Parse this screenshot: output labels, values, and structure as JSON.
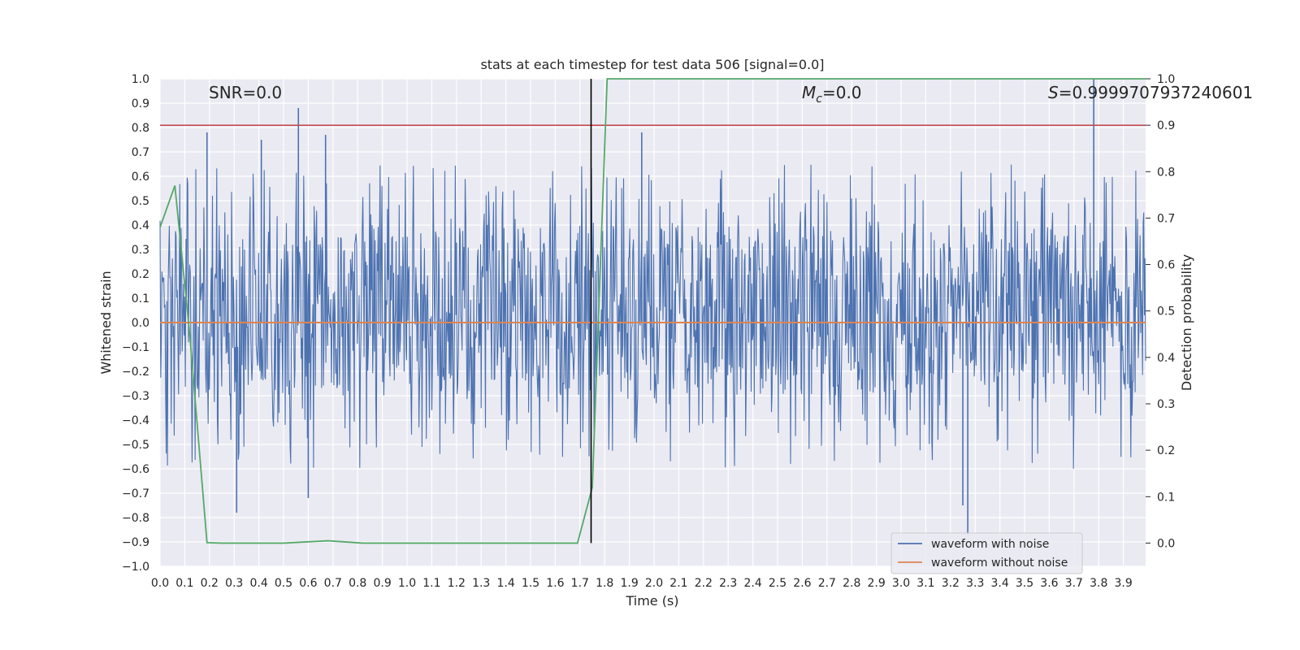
{
  "chart_data": {
    "type": "line",
    "title": "stats at each timestep for test data 506 [signal=0.0]",
    "xlabel": "Time (s)",
    "ylabel": "Whitened strain",
    "y2label": "Detection probability",
    "xlim": [
      0.0,
      3.99
    ],
    "ylim": [
      -1.0,
      1.0
    ],
    "y2lim": [
      -0.05,
      1.0
    ],
    "x_ticks": [
      0.0,
      0.1,
      0.2,
      0.3,
      0.4,
      0.5,
      0.6,
      0.7,
      0.8,
      0.9,
      1.0,
      1.1,
      1.2,
      1.3,
      1.4,
      1.5,
      1.6,
      1.7,
      1.8,
      1.9,
      2.0,
      2.1,
      2.2,
      2.3,
      2.4,
      2.5,
      2.6,
      2.7,
      2.8,
      2.9,
      3.0,
      3.1,
      3.2,
      3.3,
      3.4,
      3.5,
      3.6,
      3.7,
      3.8,
      3.9
    ],
    "x_tick_labels": [
      "0.0",
      "0.1",
      "0.2",
      "0.3",
      "0.4",
      "0.5",
      "0.6",
      "0.7",
      "0.8",
      "0.9",
      "1.0",
      "1.1",
      "1.2",
      "1.3",
      "1.4",
      "1.5",
      "1.6",
      "1.7",
      "1.8",
      "1.9",
      "2.0",
      "2.1",
      "2.2",
      "2.3",
      "2.4",
      "2.5",
      "2.6",
      "2.7",
      "2.8",
      "2.9",
      "3.0",
      "3.1",
      "3.2",
      "3.3",
      "3.4",
      "3.5",
      "3.6",
      "3.7",
      "3.8",
      "3.9"
    ],
    "y_ticks": [
      -1.0,
      -0.9,
      -0.8,
      -0.7,
      -0.6,
      -0.5,
      -0.4,
      -0.3,
      -0.2,
      -0.1,
      0.0,
      0.1,
      0.2,
      0.3,
      0.4,
      0.5,
      0.6,
      0.7,
      0.8,
      0.9,
      1.0
    ],
    "y_tick_labels": [
      "−1.0",
      "−0.9",
      "−0.8",
      "−0.7",
      "−0.6",
      "−0.5",
      "−0.4",
      "−0.3",
      "−0.2",
      "−0.1",
      "0.0",
      "0.1",
      "0.2",
      "0.3",
      "0.4",
      "0.5",
      "0.6",
      "0.7",
      "0.8",
      "0.9",
      "1.0"
    ],
    "y2_ticks": [
      0.0,
      0.1,
      0.2,
      0.3,
      0.4,
      0.5,
      0.6,
      0.7,
      0.8,
      0.9,
      1.0
    ],
    "y2_tick_labels": [
      "0.0",
      "0.1",
      "0.2",
      "0.3",
      "0.4",
      "0.5",
      "0.6",
      "0.7",
      "0.8",
      "0.9",
      "1.0"
    ],
    "grid": true,
    "legend_position": "bottom-right",
    "annotations": {
      "snr": "SNR=0.0",
      "mc_symbol": "M",
      "mc_subscript": "c",
      "mc_value": "=0.0",
      "s_symbol": "S",
      "s_value": "=0.9999707937240601"
    },
    "series": [
      {
        "name": "waveform with noise",
        "color": "#4c72b0",
        "axis": "left",
        "noise_band": [
          -0.3,
          0.4
        ],
        "spikes": [
          {
            "x": 0.19,
            "y": 0.78
          },
          {
            "x": 0.31,
            "y": -0.78
          },
          {
            "x": 0.41,
            "y": 0.75
          },
          {
            "x": 0.56,
            "y": 0.88
          },
          {
            "x": 0.6,
            "y": -0.72
          },
          {
            "x": 0.67,
            "y": 0.77
          },
          {
            "x": 1.95,
            "y": 0.78
          },
          {
            "x": 3.25,
            "y": -0.75
          },
          {
            "x": 3.27,
            "y": -0.87
          },
          {
            "x": 3.78,
            "y": 1.0
          }
        ]
      },
      {
        "name": "waveform without noise",
        "color": "#dd8452",
        "axis": "left",
        "x": [
          0.0,
          3.99
        ],
        "y": [
          0.0,
          0.0
        ]
      },
      {
        "color": "#55a868",
        "axis": "right",
        "x": [
          0.0,
          0.06,
          0.12,
          0.19,
          0.25,
          0.5,
          0.68,
          0.82,
          1.69,
          1.75,
          1.81,
          3.99
        ],
        "y": [
          0.68,
          0.77,
          0.45,
          0.001,
          0.0,
          0.0,
          0.005,
          0.0,
          0.0,
          0.12,
          1.0,
          1.0
        ]
      }
    ],
    "threshold_line": {
      "axis": "right",
      "y": 0.9,
      "color": "#c44e52"
    },
    "marker_line": {
      "x": 1.745,
      "y2_range": [
        0.0,
        1.0
      ],
      "color": "#000000"
    }
  }
}
